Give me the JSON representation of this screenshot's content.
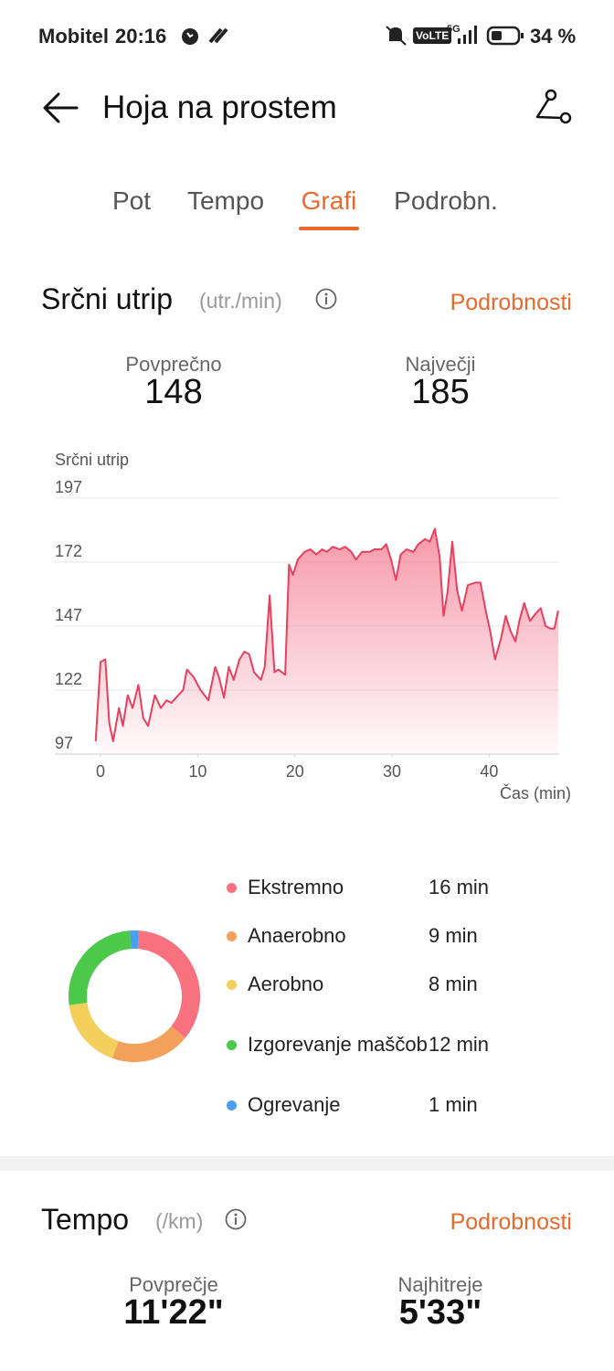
{
  "status_bar": {
    "carrier": "Mobitel",
    "time": "20:16",
    "network": "VoLTE",
    "signal": "5G",
    "battery": "34 %"
  },
  "header": {
    "title": "Hoja na prostem"
  },
  "tabs": [
    {
      "label": "Pot",
      "active": false
    },
    {
      "label": "Tempo",
      "active": false
    },
    {
      "label": "Grafi",
      "active": true
    },
    {
      "label": "Podrobn.",
      "active": false
    }
  ],
  "heart_rate": {
    "title": "Srčni utrip",
    "unit": "(utr./min)",
    "link": "Podrobnosti",
    "stats": [
      {
        "label": "Povprečno",
        "value": 148
      },
      {
        "label": "Največji",
        "value": 185
      }
    ]
  },
  "chart_data": [
    {
      "type": "line",
      "y_label": "Srčni utrip",
      "x_label": "Čas (min)",
      "x": [
        -0.5,
        0,
        0.5,
        0.9,
        1.3,
        1.9,
        2.3,
        2.8,
        3.3,
        3.9,
        4.4,
        4.9,
        5.6,
        6.2,
        6.8,
        7.3,
        8,
        8.5,
        8.9,
        9.6,
        10.3,
        11.1,
        11.8,
        12.2,
        12.7,
        13.2,
        13.7,
        14.3,
        14.8,
        15.3,
        15.8,
        16.5,
        16.9,
        17.4,
        17.9,
        18.3,
        19,
        19.4,
        19.8,
        20.3,
        21,
        21.6,
        22.2,
        22.8,
        23.3,
        23.9,
        24.6,
        25.2,
        25.8,
        26.3,
        26.9,
        27.7,
        28.2,
        28.9,
        29.4,
        29.9,
        30.4,
        30.9,
        31.5,
        32.2,
        32.7,
        33.4,
        33.9,
        34.4,
        34.9,
        35.3,
        35.7,
        36.2,
        36.7,
        37.2,
        37.8,
        38.6,
        39.1,
        39.7,
        40.1,
        40.6,
        41.2,
        41.7,
        42.2,
        42.7,
        43.1,
        43.6,
        44.2,
        44.8,
        45.3,
        45.8,
        46.3,
        46.7,
        47.1
      ],
      "values": [
        102,
        133,
        134,
        109,
        102,
        115,
        108,
        120,
        115,
        124,
        111,
        108,
        120,
        115,
        118,
        117,
        120,
        122,
        130,
        127,
        122,
        118,
        131,
        127,
        119,
        131,
        126,
        134,
        137,
        136,
        129,
        126,
        131,
        159,
        129,
        130,
        128,
        171,
        167,
        173,
        176,
        177,
        175,
        177,
        176,
        178,
        177,
        178,
        176,
        173,
        176,
        176,
        177,
        177,
        179,
        173,
        165,
        175,
        177,
        176,
        179,
        181,
        180,
        185,
        174,
        151,
        160,
        180,
        161,
        153,
        163,
        164,
        164,
        152,
        145,
        134,
        142,
        151,
        145,
        141,
        149,
        156,
        149,
        152,
        154,
        147,
        146,
        146,
        153
      ],
      "color": "#e8405e",
      "xlim": [
        -4.7,
        47.2
      ],
      "ylim": [
        97,
        197
      ],
      "xticks": [
        0,
        10,
        20,
        30,
        40
      ],
      "yticks": [
        97,
        122,
        147,
        172,
        197
      ],
      "grid": true
    },
    {
      "type": "pie",
      "categories": [
        "Ekstremno",
        "Anaerobno",
        "Aerobno",
        "Izgorevanje maščob",
        "Ogrevanje"
      ],
      "values": [
        16,
        9,
        8,
        12,
        1
      ],
      "value_labels": [
        "16 min",
        "9 min",
        "8 min",
        "12 min",
        "1 min"
      ],
      "colors": [
        "#f7717f",
        "#f5a05a",
        "#f4cf5c",
        "#4cc84a",
        "#4a9ff0"
      ]
    }
  ],
  "tempo": {
    "title": "Tempo",
    "unit": "(/km)",
    "link": "Podrobnosti",
    "stats": [
      {
        "label": "Povprečje",
        "value": "11'22\""
      },
      {
        "label": "Najhitreje",
        "value": "5'33\""
      }
    ]
  }
}
